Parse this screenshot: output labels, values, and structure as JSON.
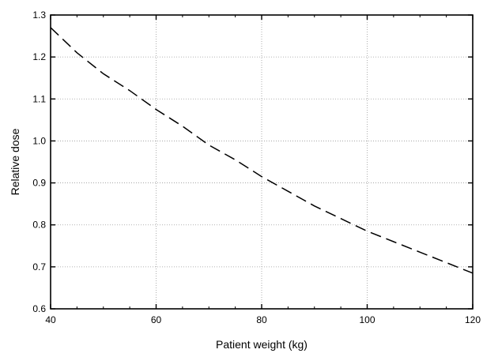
{
  "chart_data": {
    "type": "line",
    "xlabel": "Patient weight  (kg)",
    "ylabel": "Relative dose",
    "xlim": [
      40,
      120
    ],
    "ylim": [
      0.6,
      1.3
    ],
    "x_ticks": [
      "40",
      "60",
      "80",
      "100",
      "120"
    ],
    "y_ticks": [
      "0.6",
      "0.7",
      "0.8",
      "0.9",
      "1.0",
      "1.1",
      "1.2",
      "1.3"
    ],
    "grid": true,
    "series": [
      {
        "line_style": "dashed",
        "color": "#000000",
        "x": [
          40,
          45,
          50,
          55,
          60,
          65,
          70,
          75,
          80,
          85,
          90,
          95,
          100,
          105,
          110,
          115,
          120
        ],
        "y": [
          1.27,
          1.21,
          1.16,
          1.12,
          1.075,
          1.035,
          0.99,
          0.955,
          0.915,
          0.88,
          0.845,
          0.815,
          0.785,
          0.76,
          0.735,
          0.71,
          0.685
        ]
      }
    ]
  }
}
